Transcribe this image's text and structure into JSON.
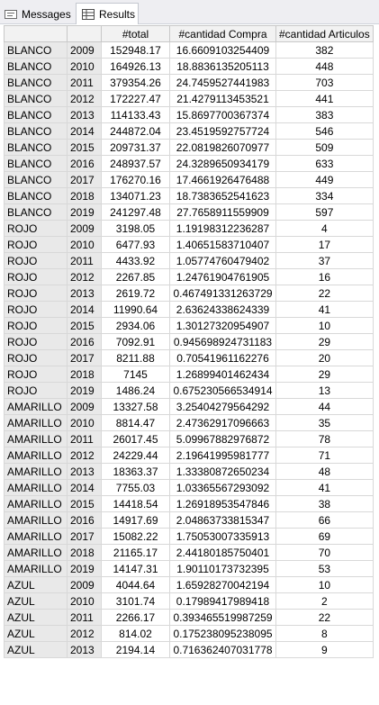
{
  "tabs": {
    "messages": {
      "label": "Messages",
      "icon": "messages-icon"
    },
    "results": {
      "label": "Results",
      "icon": "grid-icon"
    }
  },
  "grid": {
    "columns": [
      "",
      "",
      "#total",
      "#cantidad Compra",
      "#cantidad Articulos"
    ],
    "rows": [
      [
        "BLANCO",
        "2009",
        "152948.17",
        "16.6609103254409",
        "382"
      ],
      [
        "BLANCO",
        "2010",
        "164926.13",
        "18.8836135205113",
        "448"
      ],
      [
        "BLANCO",
        "2011",
        "379354.26",
        "24.7459527441983",
        "703"
      ],
      [
        "BLANCO",
        "2012",
        "172227.47",
        "21.4279113453521",
        "441"
      ],
      [
        "BLANCO",
        "2013",
        "114133.43",
        "15.8697700367374",
        "383"
      ],
      [
        "BLANCO",
        "2014",
        "244872.04",
        "23.4519592757724",
        "546"
      ],
      [
        "BLANCO",
        "2015",
        "209731.37",
        "22.0819826070977",
        "509"
      ],
      [
        "BLANCO",
        "2016",
        "248937.57",
        "24.3289650934179",
        "633"
      ],
      [
        "BLANCO",
        "2017",
        "176270.16",
        "17.4661926476488",
        "449"
      ],
      [
        "BLANCO",
        "2018",
        "134071.23",
        "18.7383652541623",
        "334"
      ],
      [
        "BLANCO",
        "2019",
        "241297.48",
        "27.7658911559909",
        "597"
      ],
      [
        "ROJO",
        "2009",
        "3198.05",
        "1.19198312236287",
        "4"
      ],
      [
        "ROJO",
        "2010",
        "6477.93",
        "1.40651583710407",
        "17"
      ],
      [
        "ROJO",
        "2011",
        "4433.92",
        "1.05774760479402",
        "37"
      ],
      [
        "ROJO",
        "2012",
        "2267.85",
        "1.24761904761905",
        "16"
      ],
      [
        "ROJO",
        "2013",
        "2619.72",
        "0.467491331263729",
        "22"
      ],
      [
        "ROJO",
        "2014",
        "11990.64",
        "2.63624338624339",
        "41"
      ],
      [
        "ROJO",
        "2015",
        "2934.06",
        "1.30127320954907",
        "10"
      ],
      [
        "ROJO",
        "2016",
        "7092.91",
        "0.945698924731183",
        "29"
      ],
      [
        "ROJO",
        "2017",
        "8211.88",
        "0.70541961162276",
        "20"
      ],
      [
        "ROJO",
        "2018",
        "7145",
        "1.26899401462434",
        "29"
      ],
      [
        "ROJO",
        "2019",
        "1486.24",
        "0.675230566534914",
        "13"
      ],
      [
        "AMARILLO",
        "2009",
        "13327.58",
        "3.25404279564292",
        "44"
      ],
      [
        "AMARILLO",
        "2010",
        "8814.47",
        "2.47362917096663",
        "35"
      ],
      [
        "AMARILLO",
        "2011",
        "26017.45",
        "5.09967882976872",
        "78"
      ],
      [
        "AMARILLO",
        "2012",
        "24229.44",
        "2.19641995981777",
        "71"
      ],
      [
        "AMARILLO",
        "2013",
        "18363.37",
        "1.33380872650234",
        "48"
      ],
      [
        "AMARILLO",
        "2014",
        "7755.03",
        "1.03365567293092",
        "41"
      ],
      [
        "AMARILLO",
        "2015",
        "14418.54",
        "1.26918953547846",
        "38"
      ],
      [
        "AMARILLO",
        "2016",
        "14917.69",
        "2.04863733815347",
        "66"
      ],
      [
        "AMARILLO",
        "2017",
        "15082.22",
        "1.75053007335913",
        "69"
      ],
      [
        "AMARILLO",
        "2018",
        "21165.17",
        "2.44180185750401",
        "70"
      ],
      [
        "AMARILLO",
        "2019",
        "14147.31",
        "1.90110173732395",
        "53"
      ],
      [
        "AZUL",
        "2009",
        "4044.64",
        "1.65928270042194",
        "10"
      ],
      [
        "AZUL",
        "2010",
        "3101.74",
        "0.17989417989418",
        "2"
      ],
      [
        "AZUL",
        "2011",
        "2266.17",
        "0.393465519987259",
        "22"
      ],
      [
        "AZUL",
        "2012",
        "814.02",
        "0.175238095238095",
        "8"
      ],
      [
        "AZUL",
        "2013",
        "2194.14",
        "0.716362407031778",
        "9"
      ]
    ]
  }
}
